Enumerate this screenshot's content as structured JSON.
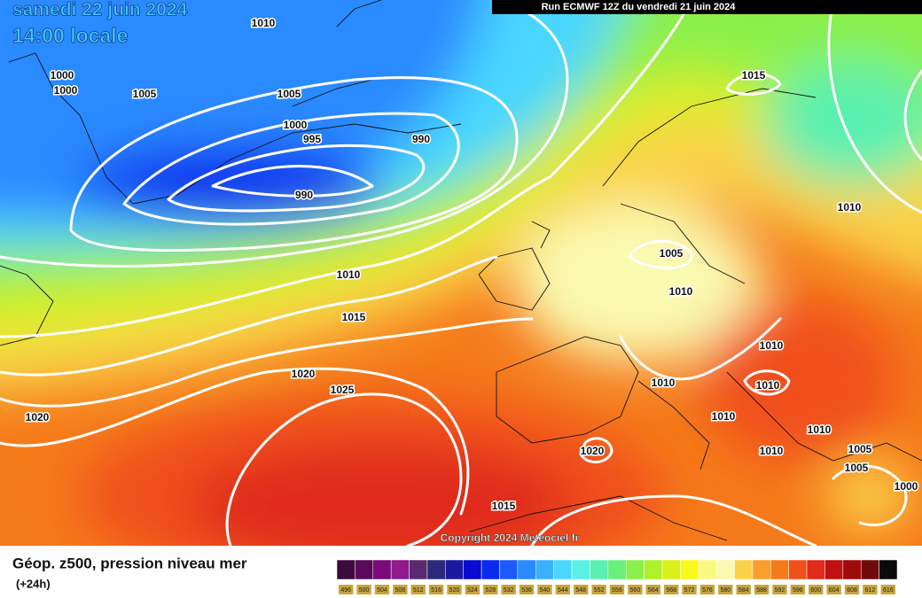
{
  "header": {
    "date": "samedi 22 juin 2024",
    "time": "14:00 locale",
    "run": "Run ECMWF 12Z du vendredi 21 juin 2024"
  },
  "copyright": "Copyright 2024 Meteociel.fr",
  "isobars": {
    "labels": [
      "1010",
      "1000",
      "1000",
      "1005",
      "1005",
      "1000",
      "995",
      "990",
      "990",
      "1015",
      "1010",
      "1005",
      "1010",
      "1010",
      "1015",
      "1020",
      "1025",
      "1020",
      "1010",
      "1010",
      "1010",
      "1010",
      "1010",
      "1005",
      "1005",
      "1000",
      "1010",
      "1020",
      "1015"
    ]
  },
  "legend": {
    "title": "Géop. z500, pression niveau mer",
    "step": "(+24h)",
    "levels": [
      496,
      500,
      504,
      508,
      512,
      516,
      520,
      524,
      528,
      532,
      536,
      540,
      544,
      548,
      552,
      556,
      560,
      564,
      568,
      572,
      576,
      580,
      584,
      588,
      592,
      596,
      600,
      604,
      608,
      612,
      616
    ],
    "colors": [
      "#3d0a3d",
      "#5a0a5a",
      "#7a0a7a",
      "#8e1a8e",
      "#5a2a6e",
      "#2a2a7a",
      "#1a1aa0",
      "#0a0ad0",
      "#0a2af0",
      "#1a5aff",
      "#2a8aff",
      "#3ab0ff",
      "#4ad6ff",
      "#5af0e6",
      "#5af0b0",
      "#6af07a",
      "#8af04a",
      "#b0f02a",
      "#daf01a",
      "#fafa1a",
      "#fafa80",
      "#fafab0",
      "#fad24a",
      "#faa02a",
      "#f57a1a",
      "#f0501a",
      "#e02a1a",
      "#c01010",
      "#a00a0a",
      "#700a0a",
      "#0a0a0a"
    ]
  }
}
